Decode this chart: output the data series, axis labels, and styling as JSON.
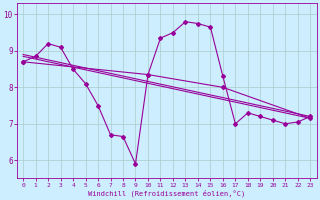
{
  "xlabel": "Windchill (Refroidissement éolien,°C)",
  "background_color": "#cceeff",
  "grid_color": "#aacccc",
  "line_color": "#990099",
  "xlim": [
    -0.5,
    23.5
  ],
  "ylim": [
    5.5,
    10.3
  ],
  "yticks": [
    6,
    7,
    8,
    9,
    10
  ],
  "xticks": [
    0,
    1,
    2,
    3,
    4,
    5,
    6,
    7,
    8,
    9,
    10,
    11,
    12,
    13,
    14,
    15,
    16,
    17,
    18,
    19,
    20,
    21,
    22,
    23
  ],
  "series": [
    {
      "x": [
        0,
        1,
        2,
        3,
        4,
        5,
        6,
        7,
        8,
        9,
        10,
        11,
        12,
        13,
        14,
        15,
        16,
        17,
        18,
        19,
        20,
        21,
        22,
        23
      ],
      "y": [
        8.7,
        8.85,
        9.2,
        9.1,
        8.5,
        8.1,
        7.5,
        6.7,
        6.65,
        5.9,
        8.35,
        9.35,
        9.5,
        9.8,
        9.75,
        9.65,
        8.3,
        7.0,
        7.3,
        7.2,
        7.1,
        7.0,
        7.05,
        7.2
      ],
      "marker": "D",
      "markersize": 2,
      "linewidth": 0.8
    },
    {
      "x": [
        0,
        23
      ],
      "y": [
        8.85,
        7.15
      ],
      "marker": null,
      "linewidth": 0.8
    },
    {
      "x": [
        0,
        23
      ],
      "y": [
        8.9,
        7.2
      ],
      "marker": null,
      "linewidth": 0.8
    },
    {
      "x": [
        0,
        10,
        16,
        23
      ],
      "y": [
        8.7,
        8.35,
        8.0,
        7.15
      ],
      "marker": "D",
      "markersize": 2,
      "linewidth": 0.8
    }
  ]
}
